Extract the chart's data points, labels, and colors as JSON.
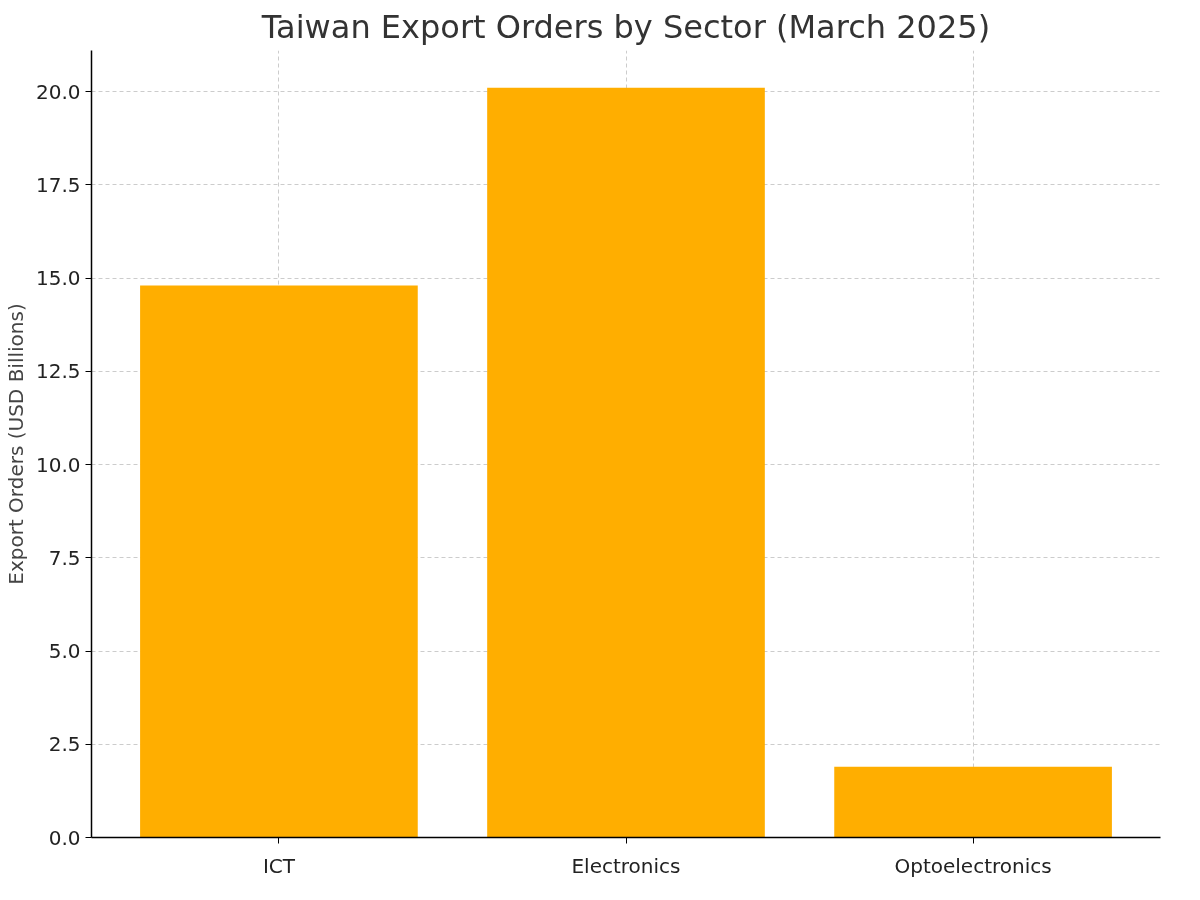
{
  "chart_data": {
    "type": "bar",
    "title": "Taiwan Export Orders by Sector (March 2025)",
    "ylabel": "Export Orders (USD Billions)",
    "categories": [
      "ICT",
      "Electronics",
      "Optoelectronics"
    ],
    "values": [
      14.8,
      20.1,
      1.9
    ],
    "color": "#ffae00",
    "ylim": [
      0,
      21.1
    ],
    "yticks": [
      {
        "value": 0,
        "label": "0.0"
      },
      {
        "value": 2.5,
        "label": "2.5"
      },
      {
        "value": 5,
        "label": "5.0"
      },
      {
        "value": 7.5,
        "label": "7.5"
      },
      {
        "value": 10,
        "label": "10.0"
      },
      {
        "value": 12.5,
        "label": "12.5"
      },
      {
        "value": 15,
        "label": "15.0"
      },
      {
        "value": 17.5,
        "label": "17.5"
      },
      {
        "value": 20,
        "label": "20.0"
      }
    ],
    "grid": true
  }
}
